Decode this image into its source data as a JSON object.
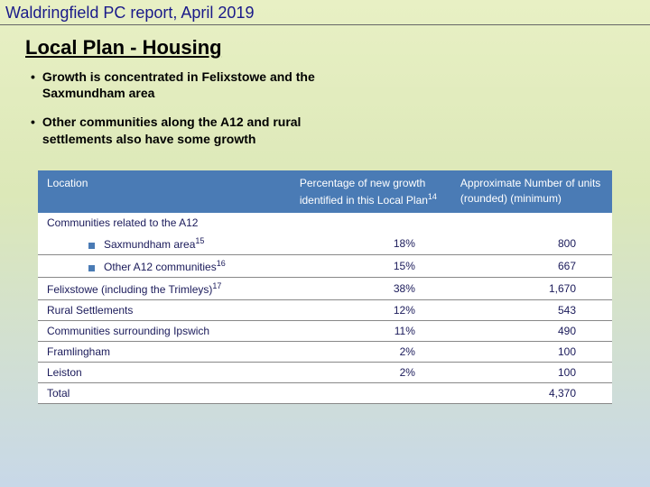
{
  "header": {
    "title": "Waldringfield PC report, April 2019"
  },
  "slide": {
    "title": "Local Plan - Housing",
    "bullets": [
      "Growth is concentrated in Felixstowe and the Saxmundham area",
      "Other communities along the A12 and rural settlements also have some growth"
    ]
  },
  "table": {
    "columns": [
      {
        "label": "Location"
      },
      {
        "label": "Percentage of new growth identified in this Local Plan",
        "sup": "14"
      },
      {
        "label": "Approximate Number of units (rounded) (minimum)"
      }
    ],
    "colors": {
      "header_bg": "#4a7bb5",
      "header_text": "#ffffff",
      "cell_text": "#1a1a5a",
      "border": "#888888",
      "background": "#ffffff"
    },
    "rows": [
      {
        "type": "grouphead",
        "label": "Communities related to the A12",
        "pct": "",
        "units": ""
      },
      {
        "type": "sub",
        "label": "Saxmundham area",
        "sup": "15",
        "pct": "18%",
        "units": "800"
      },
      {
        "type": "sub",
        "label": "Other A12 communities",
        "sup": "16",
        "pct": "15%",
        "units": "667"
      },
      {
        "type": "norm",
        "label": "Felixstowe (including the Trimleys)",
        "sup": "17",
        "pct": "38%",
        "units": "1,670"
      },
      {
        "type": "norm",
        "label": "Rural Settlements",
        "pct": "12%",
        "units": "543"
      },
      {
        "type": "norm",
        "label": "Communities surrounding Ipswich",
        "pct": "11%",
        "units": "490"
      },
      {
        "type": "norm",
        "label": "Framlingham",
        "pct": "2%",
        "units": "100"
      },
      {
        "type": "norm",
        "label": "Leiston",
        "pct": "2%",
        "units": "100"
      },
      {
        "type": "total",
        "label": "Total",
        "pct": "",
        "units": "4,370"
      }
    ]
  }
}
